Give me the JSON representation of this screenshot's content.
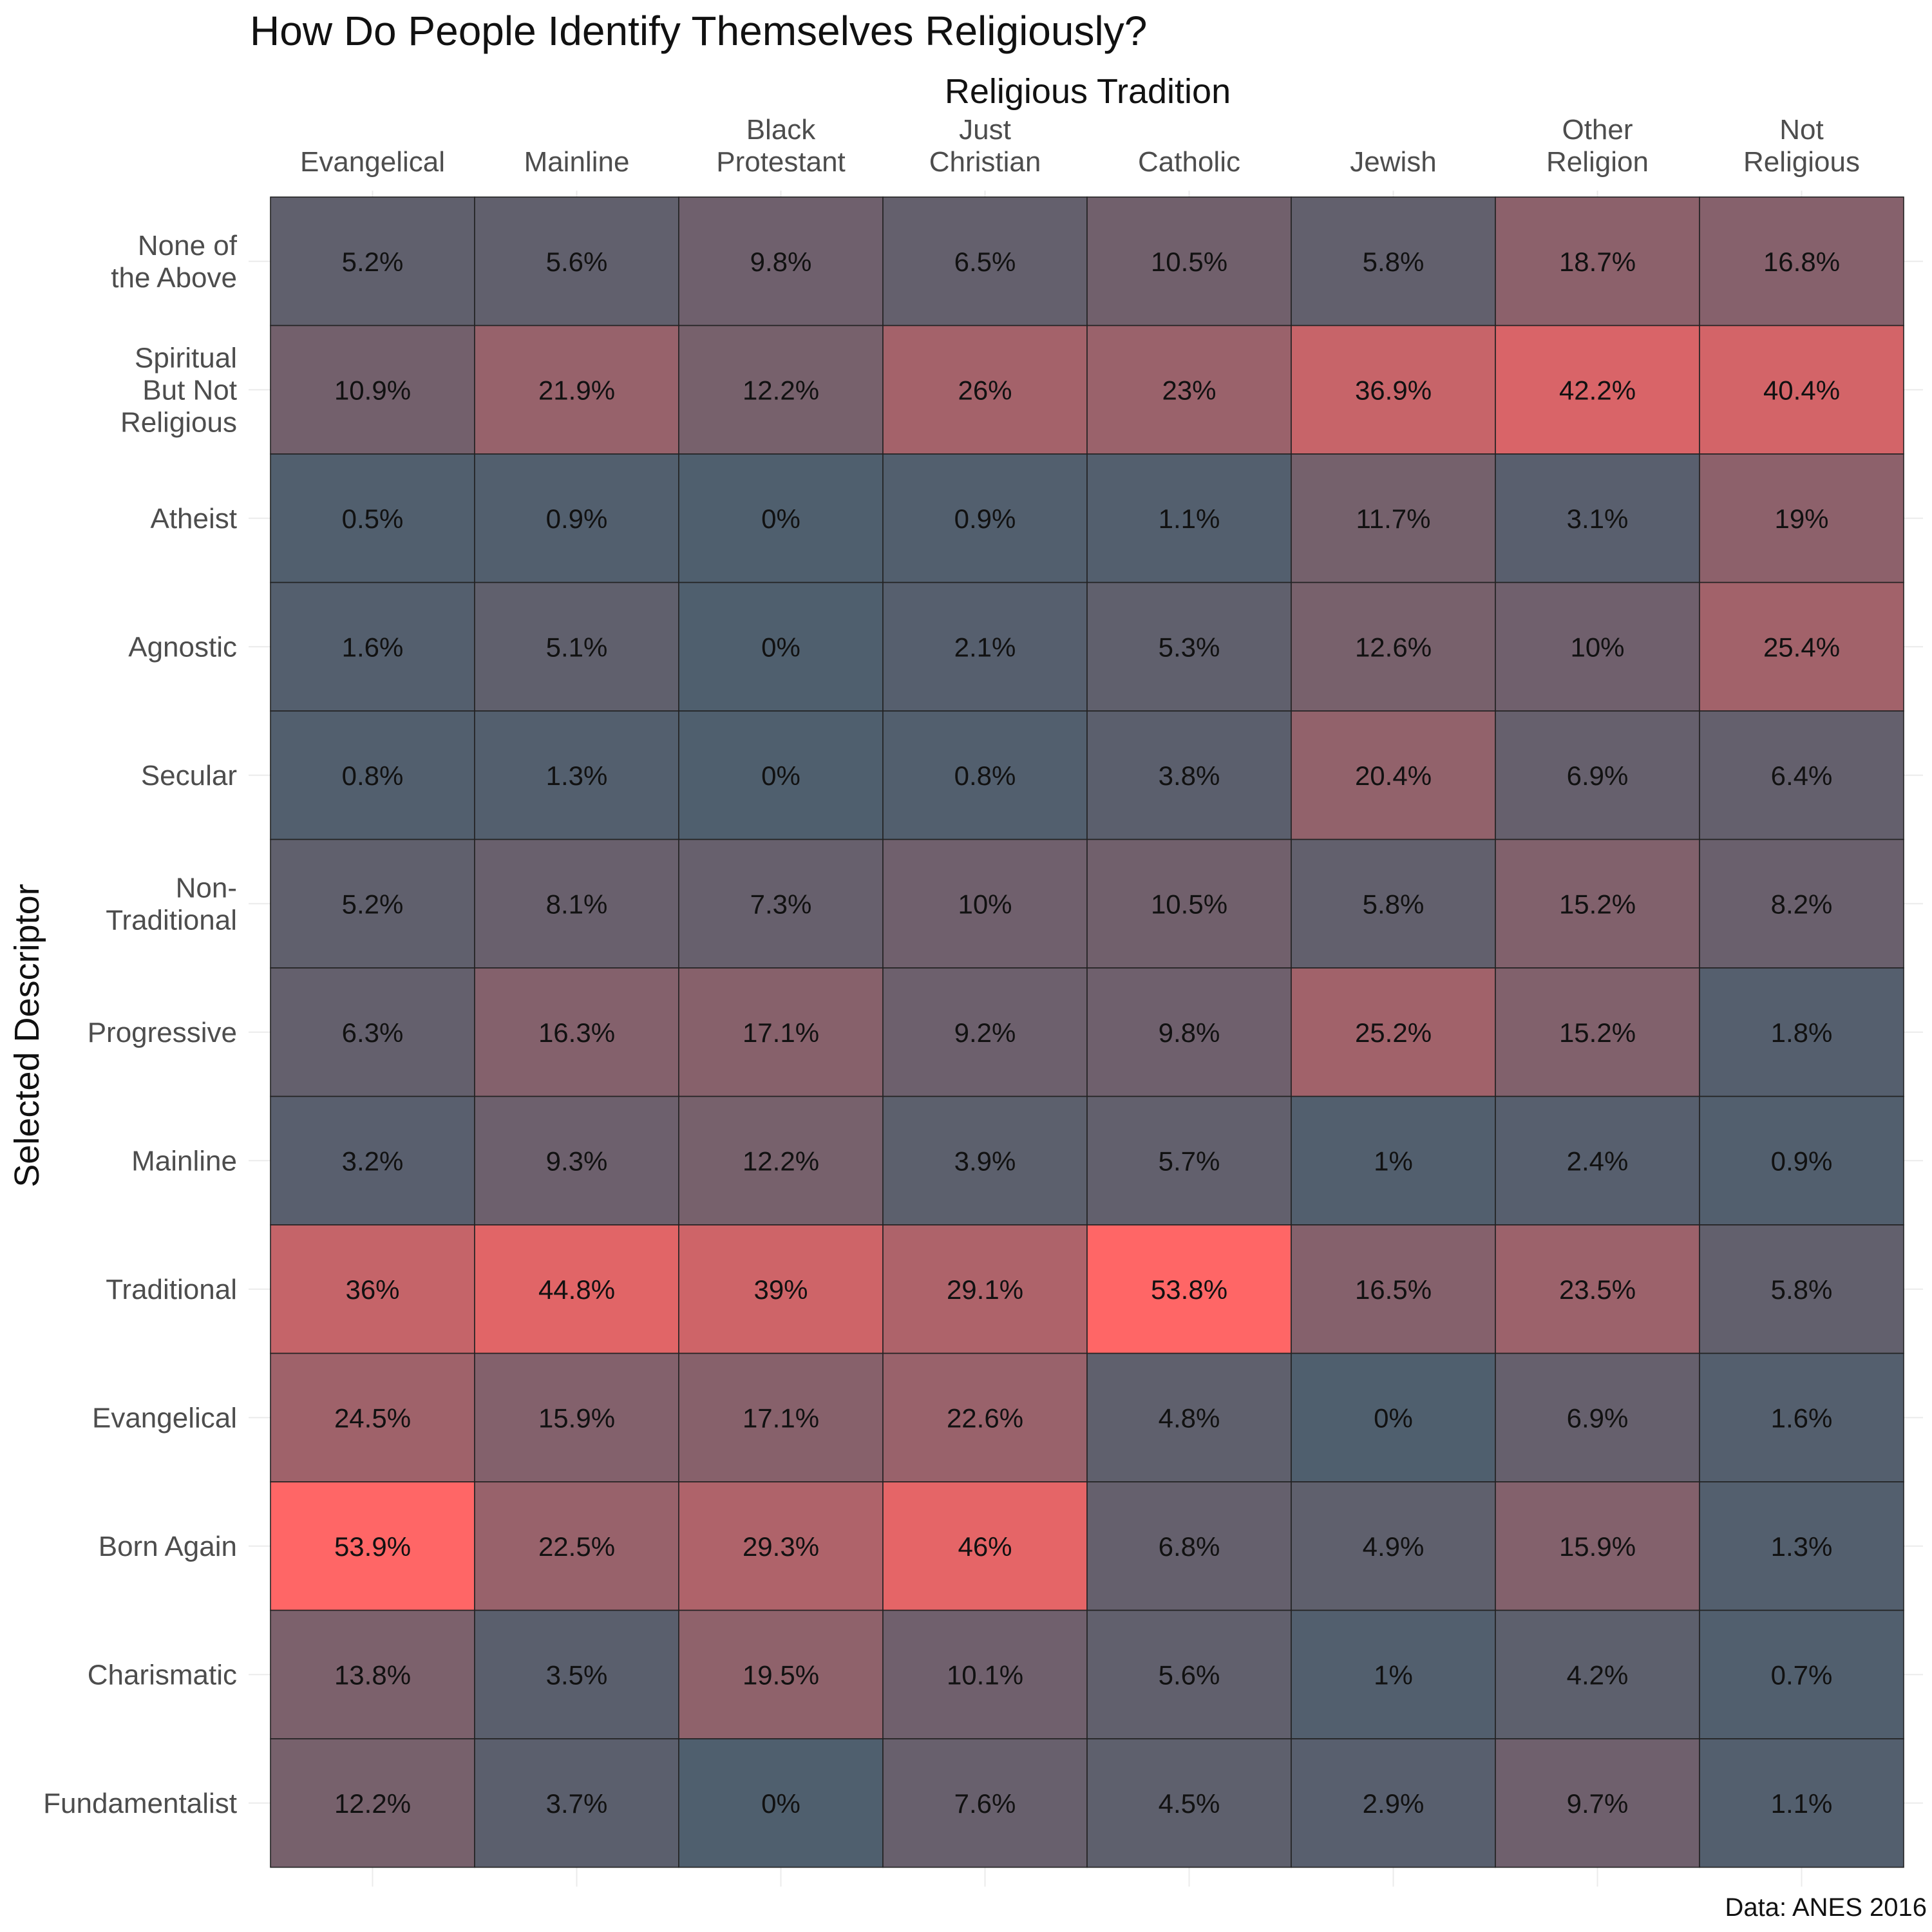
{
  "chart_data": {
    "type": "heatmap",
    "title": "How Do People Identify Themselves Religiously?",
    "xlabel": "Religious Tradition",
    "ylabel": "Selected Descriptor",
    "caption": "Data: ANES 2016",
    "x_categories": [
      [
        "Evangelical"
      ],
      [
        "Mainline"
      ],
      [
        "Black",
        "Protestant"
      ],
      [
        "Just",
        "Christian"
      ],
      [
        "Catholic"
      ],
      [
        "Jewish"
      ],
      [
        "Other",
        "Religion"
      ],
      [
        "Not",
        "Religious"
      ]
    ],
    "y_categories": [
      [
        "None of",
        "the Above"
      ],
      [
        "Spiritual",
        "But Not",
        "Religious"
      ],
      [
        "Atheist"
      ],
      [
        "Agnostic"
      ],
      [
        "Secular"
      ],
      [
        "Non-",
        "Traditional"
      ],
      [
        "Progressive"
      ],
      [
        "Mainline"
      ],
      [
        "Traditional"
      ],
      [
        "Evangelical"
      ],
      [
        "Born Again"
      ],
      [
        "Charismatic"
      ],
      [
        "Fundamentalist"
      ]
    ],
    "values": [
      [
        5.2,
        5.6,
        9.8,
        6.5,
        10.5,
        5.8,
        18.7,
        16.8
      ],
      [
        10.9,
        21.9,
        12.2,
        26,
        23,
        36.9,
        42.2,
        40.4
      ],
      [
        0.5,
        0.9,
        0,
        0.9,
        1.1,
        11.7,
        3.1,
        19
      ],
      [
        1.6,
        5.1,
        0,
        2.1,
        5.3,
        12.6,
        10,
        25.4
      ],
      [
        0.8,
        1.3,
        0,
        0.8,
        3.8,
        20.4,
        6.9,
        6.4
      ],
      [
        5.2,
        8.1,
        7.3,
        10,
        10.5,
        5.8,
        15.2,
        8.2
      ],
      [
        6.3,
        16.3,
        17.1,
        9.2,
        9.8,
        25.2,
        15.2,
        1.8
      ],
      [
        3.2,
        9.3,
        12.2,
        3.9,
        5.7,
        1,
        2.4,
        0.9
      ],
      [
        36,
        44.8,
        39,
        29.1,
        53.8,
        16.5,
        23.5,
        5.8
      ],
      [
        24.5,
        15.9,
        17.1,
        22.6,
        4.8,
        0,
        6.9,
        1.6
      ],
      [
        53.9,
        22.5,
        29.3,
        46,
        6.8,
        4.9,
        15.9,
        1.3
      ],
      [
        13.8,
        3.5,
        19.5,
        10.1,
        5.6,
        1,
        4.2,
        0.7
      ],
      [
        12.2,
        3.7,
        0,
        7.6,
        4.5,
        2.9,
        9.7,
        1.1
      ]
    ],
    "value_suffix": "%",
    "color_low": "#4f5f6e",
    "color_high": "#ff6666",
    "legend": "none",
    "grid": true
  }
}
